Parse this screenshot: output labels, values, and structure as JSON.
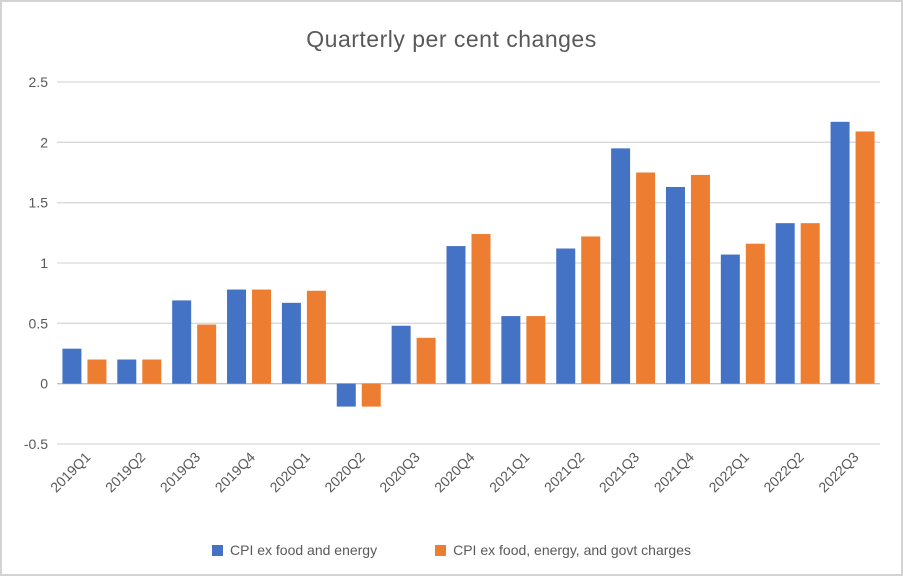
{
  "chart_data": {
    "type": "bar",
    "title": "Quarterly per cent changes",
    "categories": [
      "2019Q1",
      "2019Q2",
      "2019Q3",
      "2019Q4",
      "2020Q1",
      "2020Q2",
      "2020Q3",
      "2020Q4",
      "2021Q1",
      "2021Q2",
      "2021Q3",
      "2021Q4",
      "2022Q1",
      "2022Q2",
      "2022Q3"
    ],
    "series": [
      {
        "name": "CPI ex food and energy",
        "color": "#4472C4",
        "values": [
          0.29,
          0.2,
          0.69,
          0.78,
          0.67,
          -0.19,
          0.48,
          1.14,
          0.56,
          1.12,
          1.95,
          1.63,
          1.07,
          1.33,
          2.17
        ]
      },
      {
        "name": "CPI ex food, energy, and govt charges",
        "color": "#ED7D31",
        "values": [
          0.2,
          0.2,
          0.49,
          0.78,
          0.77,
          -0.19,
          0.38,
          1.24,
          0.56,
          1.22,
          1.75,
          1.73,
          1.16,
          1.33,
          2.09
        ]
      }
    ],
    "ylim": [
      -0.5,
      2.5
    ],
    "yticks": [
      2.5,
      2,
      1.5,
      1,
      0.5,
      0,
      -0.5
    ],
    "grid": true,
    "legend_position": "bottom",
    "xlabel": "",
    "ylabel": ""
  },
  "colors": {
    "grid": "#D9D9D9",
    "zero_line": "#C0C0C0",
    "axis_text": "#595959",
    "title_text": "#595959",
    "border": "#D3D3D3",
    "background": "#FFFFFF"
  }
}
